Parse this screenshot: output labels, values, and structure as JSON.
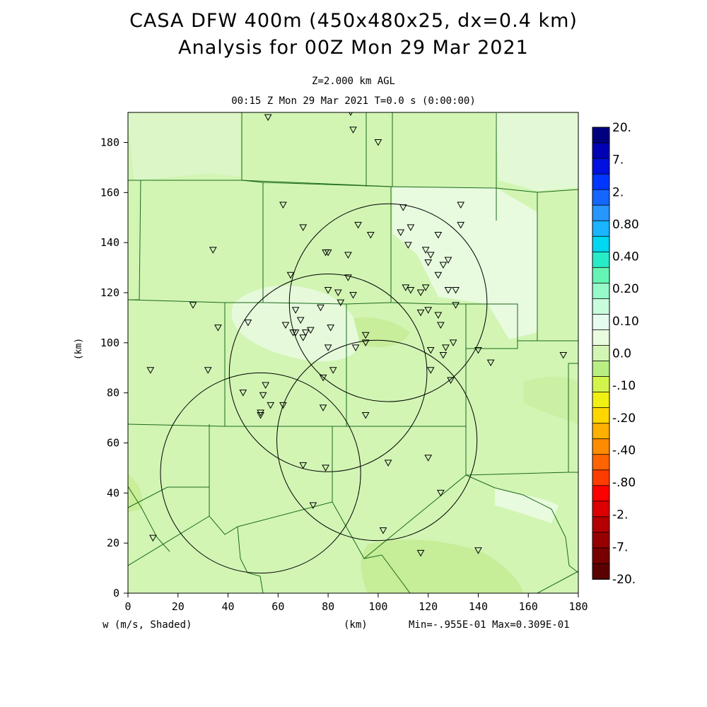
{
  "header": {
    "title_line1": "CASA DFW 400m (450x480x25, dx=0.4 km)",
    "title_line2": "Analysis for 00Z Mon 29 Mar 2021",
    "level": "Z=2.000 km AGL",
    "time_line": "00:15 Z Mon 29 Mar 2021    T=0.0 s (0:00:00)"
  },
  "footer": {
    "variable_label": "w (m/s, Shaded)",
    "x_unit": "(km)",
    "minmax": "Min=-.955E-01 Max=0.309E-01"
  },
  "colors": {
    "background_field": "#d2f5b4",
    "light_patch": "#eafce0",
    "darker_patch": "#c4ec96",
    "county_lines": "#1c6a1c"
  },
  "chart_data": {
    "type": "heatmap",
    "xlabel": "(km)",
    "ylabel": "(km)",
    "xlim": [
      0,
      180
    ],
    "ylim": [
      0,
      192
    ],
    "xticks": [
      "0",
      "20",
      "40",
      "60",
      "80",
      "100",
      "120",
      "140",
      "160",
      "180"
    ],
    "yticks": [
      "0",
      "20",
      "40",
      "60",
      "80",
      "100",
      "120",
      "140",
      "160",
      "180"
    ],
    "grid": false,
    "colorbar": {
      "labels": [
        "20.",
        "7.",
        "2.",
        "0.80",
        "0.40",
        "0.20",
        "0.10",
        "0.0",
        "-.10",
        "-.20",
        "-.40",
        "-.80",
        "-2.",
        "-7.",
        "-20."
      ],
      "colors": [
        "#00007f",
        "#0000b4",
        "#0010e0",
        "#0036ff",
        "#1466ff",
        "#2896ff",
        "#1ab4ff",
        "#00d7f0",
        "#28ebc8",
        "#64f5b4",
        "#96fac8",
        "#c8fcdc",
        "#e6fcef",
        "#eafce0",
        "#d2f5b4",
        "#b8ee82",
        "#d2f54c",
        "#f0f014",
        "#ffd700",
        "#ffb000",
        "#ff8c00",
        "#ff6400",
        "#ff3c00",
        "#ff0000",
        "#dc0000",
        "#b40000",
        "#960000",
        "#780000",
        "#5a0000"
      ]
    },
    "radar_rings": [
      {
        "cx": 104,
        "cy": 116,
        "r": 39.5
      },
      {
        "cx": 80,
        "cy": 88,
        "r": 39.5
      },
      {
        "cx": 53,
        "cy": 48,
        "r": 40
      },
      {
        "cx": 99.5,
        "cy": 61,
        "r": 40
      }
    ],
    "stations": [
      [
        56,
        190
      ],
      [
        89,
        192
      ],
      [
        90,
        185
      ],
      [
        100,
        180
      ],
      [
        62,
        155
      ],
      [
        70,
        146
      ],
      [
        34,
        137
      ],
      [
        133,
        155
      ],
      [
        133,
        147
      ],
      [
        110,
        154
      ],
      [
        113,
        146
      ],
      [
        109,
        144
      ],
      [
        124,
        143
      ],
      [
        112,
        139
      ],
      [
        92,
        147
      ],
      [
        97,
        143
      ],
      [
        79,
        136
      ],
      [
        80,
        136
      ],
      [
        88,
        135
      ],
      [
        119,
        137
      ],
      [
        121,
        135
      ],
      [
        120,
        132
      ],
      [
        126,
        131
      ],
      [
        128,
        133
      ],
      [
        124,
        127
      ],
      [
        65,
        127
      ],
      [
        88,
        126
      ],
      [
        111,
        122
      ],
      [
        119,
        122
      ],
      [
        113,
        121
      ],
      [
        117,
        120
      ],
      [
        128,
        121
      ],
      [
        131,
        121
      ],
      [
        80,
        121
      ],
      [
        84,
        120
      ],
      [
        90,
        119
      ],
      [
        26,
        115
      ],
      [
        85,
        116
      ],
      [
        77,
        114
      ],
      [
        67,
        113
      ],
      [
        131,
        115
      ],
      [
        120,
        113
      ],
      [
        117,
        112
      ],
      [
        124,
        111
      ],
      [
        125,
        107
      ],
      [
        36,
        106
      ],
      [
        48,
        108
      ],
      [
        63,
        107
      ],
      [
        69,
        109
      ],
      [
        66,
        104
      ],
      [
        67,
        104
      ],
      [
        71,
        104
      ],
      [
        73,
        105
      ],
      [
        70,
        102
      ],
      [
        81,
        106
      ],
      [
        95,
        103
      ],
      [
        80,
        98
      ],
      [
        91,
        98
      ],
      [
        95,
        100
      ],
      [
        121,
        97
      ],
      [
        127,
        98
      ],
      [
        130,
        100
      ],
      [
        140,
        97
      ],
      [
        126,
        95
      ],
      [
        145,
        92
      ],
      [
        174,
        95
      ],
      [
        9,
        89
      ],
      [
        32,
        89
      ],
      [
        121,
        89
      ],
      [
        129,
        85
      ],
      [
        82,
        89
      ],
      [
        78,
        86
      ],
      [
        55,
        83
      ],
      [
        46,
        80
      ],
      [
        54,
        79
      ],
      [
        57,
        75
      ],
      [
        62,
        75
      ],
      [
        78,
        74
      ],
      [
        53,
        72
      ],
      [
        53,
        71
      ],
      [
        95,
        71
      ],
      [
        120,
        54
      ],
      [
        104,
        52
      ],
      [
        70,
        51
      ],
      [
        79,
        50
      ],
      [
        125,
        40
      ],
      [
        74,
        35
      ],
      [
        102,
        25
      ],
      [
        10,
        22
      ],
      [
        117,
        16
      ],
      [
        140,
        17
      ]
    ]
  }
}
